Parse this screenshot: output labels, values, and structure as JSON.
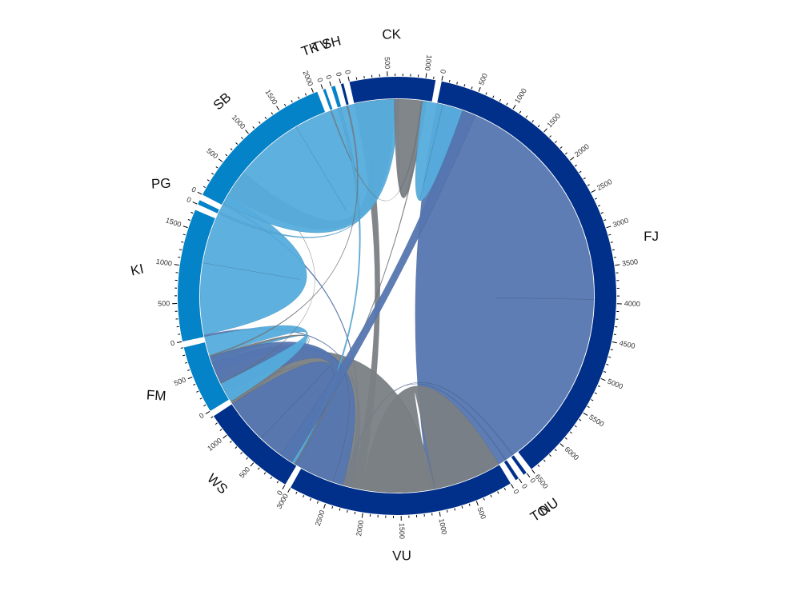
{
  "chart_data": {
    "type": "chord",
    "title": "",
    "tick_step": 500,
    "label_step": 500,
    "groups": [
      {
        "name": "FJ",
        "total": 6500,
        "color": "#00308a"
      },
      {
        "name": "NU",
        "total": 45,
        "color": "#00308a"
      },
      {
        "name": "TO",
        "total": 45,
        "color": "#00308a"
      },
      {
        "name": "VU",
        "total": 3000,
        "color": "#00308a"
      },
      {
        "name": "WS",
        "total": 1300,
        "color": "#00308a"
      },
      {
        "name": "FM",
        "total": 900,
        "color": "#0483c8"
      },
      {
        "name": "KI",
        "total": 1750,
        "color": "#0483c8"
      },
      {
        "name": "PG",
        "total": 60,
        "color": "#0483c8"
      },
      {
        "name": "SB",
        "total": 2050,
        "color": "#0483c8"
      },
      {
        "name": "TK",
        "total": 35,
        "color": "#0483c8"
      },
      {
        "name": "TV",
        "total": 50,
        "color": "#0483c8"
      },
      {
        "name": "SH",
        "total": 35,
        "color": "#00308a"
      },
      {
        "name": "CK",
        "total": 1130,
        "color": "#00308a"
      }
    ],
    "flows": [
      {
        "source": "FJ",
        "target": "FJ",
        "value": 3950,
        "color": "#5476b0"
      },
      {
        "source": "FJ",
        "target": "VU",
        "value": 1000,
        "color": "#7a7f85"
      },
      {
        "source": "FJ",
        "target": "CK",
        "value": 150,
        "color": "#7a7f85"
      },
      {
        "source": "FJ",
        "target": "KI",
        "value": 30,
        "color": "#5476b0"
      },
      {
        "source": "FJ",
        "target": "FM",
        "value": 30,
        "color": "#5476b0"
      },
      {
        "source": "FJ",
        "target": "SB",
        "value": 30,
        "color": "#5476b0"
      },
      {
        "source": "FJ",
        "target": "NU",
        "value": 20,
        "color": "#5476b0"
      },
      {
        "source": "FJ",
        "target": "TO",
        "value": 20,
        "color": "#5476b0"
      },
      {
        "source": "VU",
        "target": "VU",
        "value": 1950,
        "color": "#7a7f85"
      },
      {
        "source": "VU",
        "target": "FJ",
        "value": 150,
        "color": "#5476b0"
      },
      {
        "source": "VU",
        "target": "FM",
        "value": 50,
        "color": "#55acdc"
      },
      {
        "source": "WS",
        "target": "WS",
        "value": 650,
        "color": "#5476b0"
      },
      {
        "source": "WS",
        "target": "VU",
        "value": 40,
        "color": "#7a7f85"
      },
      {
        "source": "FM",
        "target": "FJ",
        "value": 600,
        "color": "#5476b0"
      },
      {
        "source": "FM",
        "target": "WS",
        "value": 300,
        "color": "#55acdc"
      },
      {
        "source": "KI",
        "target": "KI",
        "value": 1050,
        "color": "#55acdc"
      },
      {
        "source": "KI",
        "target": "CK",
        "value": 400,
        "color": "#7a7f85"
      },
      {
        "source": "KI",
        "target": "WS",
        "value": 10,
        "color": "#7a7f85"
      },
      {
        "source": "PG",
        "target": "CK",
        "value": 30,
        "color": "#55acdc"
      },
      {
        "source": "SB",
        "target": "SB",
        "value": 1550,
        "color": "#55acdc"
      },
      {
        "source": "SB",
        "target": "CK",
        "value": 400,
        "color": "#7a7f85"
      },
      {
        "source": "SB",
        "target": "FJ",
        "value": 20,
        "color": "#7a7f85"
      },
      {
        "source": "TK",
        "target": "CK",
        "value": 15,
        "color": "#7a7f85"
      },
      {
        "source": "TV",
        "target": "FJ",
        "value": 40,
        "color": "#55acdc"
      },
      {
        "source": "SH",
        "target": "VU",
        "value": 20,
        "color": "#7a7f85"
      },
      {
        "source": "CK",
        "target": "CK",
        "value": 300,
        "color": "#55acdc"
      },
      {
        "source": "CK",
        "target": "FJ",
        "value": 200,
        "color": "#5476b0"
      }
    ]
  }
}
